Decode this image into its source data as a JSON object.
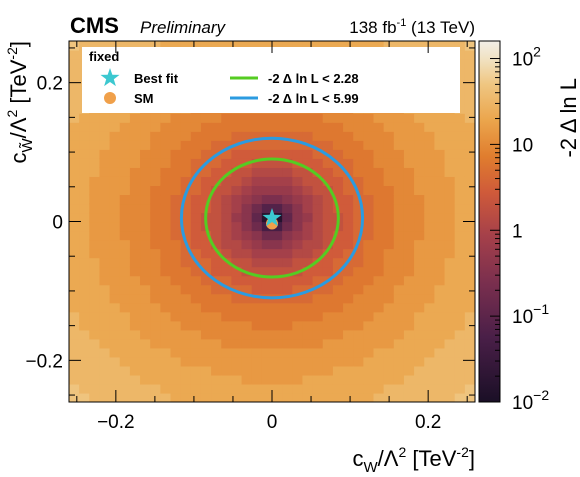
{
  "header": {
    "experiment": "CMS",
    "status": "Preliminary",
    "lumi_value": "138 fb",
    "lumi_exp": "-1",
    "lumi_energy": "(13 TeV)"
  },
  "chart_data": {
    "type": "heatmap",
    "description_of_values": "-2 Δ ln L scan",
    "xlabel": {
      "main": "c",
      "sub": "W",
      "rest": "/Λ",
      "sup": "2",
      "unit": " [TeV",
      "unitsup": "-2",
      "close": "]"
    },
    "ylabel": {
      "main": "c",
      "sub": "W̃",
      "rest": "/Λ",
      "sup": "2",
      "unit": " [TeV",
      "unitsup": "-2",
      "close": "]"
    },
    "xlim": [
      -0.26,
      0.26
    ],
    "ylim": [
      -0.26,
      0.26
    ],
    "xticks": [
      {
        "value": -0.2,
        "label": "−0.2"
      },
      {
        "value": 0,
        "label": "0"
      },
      {
        "value": 0.2,
        "label": "0.2"
      }
    ],
    "yticks": [
      {
        "value": -0.2,
        "label": "−0.2"
      },
      {
        "value": 0,
        "label": "0"
      },
      {
        "value": 0.2,
        "label": "0.2"
      }
    ],
    "colorbar": {
      "label": "-2 Δ ln L",
      "scale": "log",
      "range": [
        0.01,
        160
      ],
      "ticks": [
        {
          "value": 0.01,
          "base": "10",
          "exp": "−2"
        },
        {
          "value": 0.1,
          "base": "10",
          "exp": "−1"
        },
        {
          "value": 1,
          "base": "1",
          "exp": ""
        },
        {
          "value": 10,
          "base": "10",
          "exp": ""
        },
        {
          "value": 100,
          "base": "10",
          "exp": "2"
        }
      ]
    },
    "best_fit": {
      "x": 0.0,
      "y": 0.005
    },
    "sm": {
      "x": 0.0,
      "y": 0.0
    },
    "contours": [
      {
        "label": "-2  Δ ln L < 2.28",
        "level": 2.28,
        "cx": 0.0,
        "cy": 0.005,
        "rx": 0.085,
        "ry": 0.085,
        "color": "#55cc22"
      },
      {
        "label": "-2  Δ ln L < 5.99",
        "level": 5.99,
        "cx": 0.0,
        "cy": 0.005,
        "rx": 0.116,
        "ry": 0.115,
        "color": "#2b9be0"
      }
    ],
    "legend": {
      "title": "fixed",
      "position": "top",
      "entries": [
        {
          "label": "Best fit",
          "marker": "star",
          "color": "#3cc8d0"
        },
        {
          "label": "SM",
          "marker": "circle",
          "color": "#f0a04a"
        },
        {
          "label": "-2  Δ ln L < 2.28",
          "marker": "line",
          "color": "#55cc22"
        },
        {
          "label": "-2  Δ ln L < 5.99",
          "marker": "line",
          "color": "#2b9be0"
        }
      ]
    }
  }
}
